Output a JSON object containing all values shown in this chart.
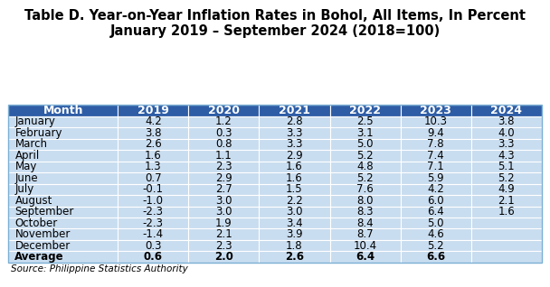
{
  "title": "Table D. Year-on-Year Inflation Rates in Bohol, All Items, In Percent\nJanuary 2019 – September 2024 (2018=100)",
  "source": "Source: Philippine Statistics Authority",
  "header": [
    "Month",
    "2019",
    "2020",
    "2021",
    "2022",
    "2023",
    "2024"
  ],
  "rows": [
    [
      "January",
      "4.2",
      "1.2",
      "2.8",
      "2.5",
      "10.3",
      "3.8"
    ],
    [
      "February",
      "3.8",
      "0.3",
      "3.3",
      "3.1",
      "9.4",
      "4.0"
    ],
    [
      "March",
      "2.6",
      "0.8",
      "3.3",
      "5.0",
      "7.8",
      "3.3"
    ],
    [
      "April",
      "1.6",
      "1.1",
      "2.9",
      "5.2",
      "7.4",
      "4.3"
    ],
    [
      "May",
      "1.3",
      "2.3",
      "1.6",
      "4.8",
      "7.1",
      "5.1"
    ],
    [
      "June",
      "0.7",
      "2.9",
      "1.6",
      "5.2",
      "5.9",
      "5.2"
    ],
    [
      "July",
      "-0.1",
      "2.7",
      "1.5",
      "7.6",
      "4.2",
      "4.9"
    ],
    [
      "August",
      "-1.0",
      "3.0",
      "2.2",
      "8.0",
      "6.0",
      "2.1"
    ],
    [
      "September",
      "-2.3",
      "3.0",
      "3.0",
      "8.3",
      "6.4",
      "1.6"
    ],
    [
      "October",
      "-2.3",
      "1.9",
      "3.4",
      "8.4",
      "5.0",
      ""
    ],
    [
      "November",
      "-1.4",
      "2.1",
      "3.9",
      "8.7",
      "4.6",
      ""
    ],
    [
      "December",
      "0.3",
      "2.3",
      "1.8",
      "10.4",
      "5.2",
      ""
    ]
  ],
  "average_row": [
    "Average",
    "0.6",
    "2.0",
    "2.6",
    "6.4",
    "6.6",
    ""
  ],
  "header_bg": "#2E5DA6",
  "header_text": "#FFFFFF",
  "row_bg": "#C9DDF0",
  "avg_row_bg": "#C9DDF0",
  "border_color": "#7BAFD4",
  "title_fontsize": 10.5,
  "source_fontsize": 7.5,
  "cell_fontsize": 8.5,
  "header_fontsize": 9
}
